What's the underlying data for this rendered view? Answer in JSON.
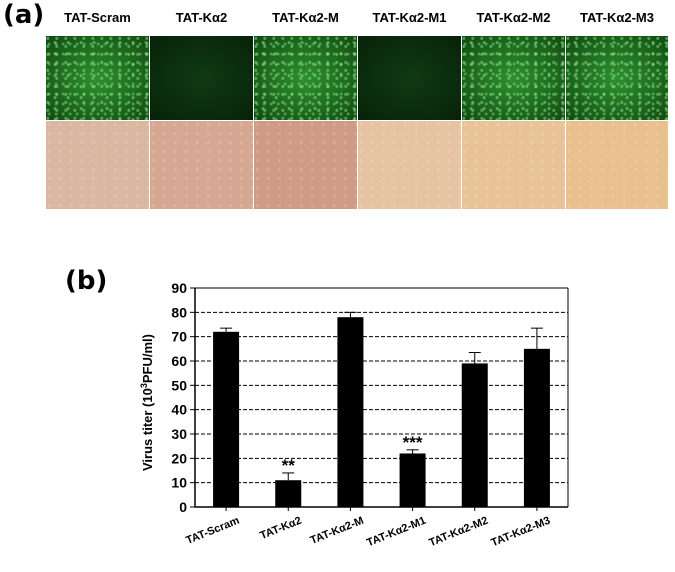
{
  "panel_a": {
    "label": "(a)",
    "columns": [
      {
        "title": "TAT-Scram",
        "fluorescence": "high",
        "bright_tint": "#d9b7a0"
      },
      {
        "title": "TAT-Kα2",
        "fluorescence": "low",
        "bright_tint": "#d6a894"
      },
      {
        "title": "TAT-Kα2-M",
        "fluorescence": "high",
        "bright_tint": "#cf9a86"
      },
      {
        "title": "TAT-Kα2-M1",
        "fluorescence": "low",
        "bright_tint": "#e6c3a2"
      },
      {
        "title": "TAT-Kα2-M2",
        "fluorescence": "high",
        "bright_tint": "#e8c398"
      },
      {
        "title": "TAT-Kα2-M3",
        "fluorescence": "high",
        "bright_tint": "#e9c08e"
      }
    ]
  },
  "panel_b": {
    "label": "(b)"
  },
  "chart_data": {
    "type": "bar",
    "title": "",
    "xlabel": "",
    "ylabel_prefix": "Virus titer (10",
    "ylabel_sup": "3",
    "ylabel_suffix": "PFU/ml)",
    "categories": [
      "TAT-Scram",
      "TAT-Kα2",
      "TAT-Kα2-M",
      "TAT-Kα2-M1",
      "TAT-Kα2-M2",
      "TAT-Kα2-M3"
    ],
    "values": [
      72,
      11,
      78,
      22,
      59,
      65
    ],
    "errors": [
      1.5,
      3,
      2,
      1.5,
      4.5,
      8.5
    ],
    "annotations": [
      "",
      "**",
      "",
      "***",
      "",
      ""
    ],
    "ylim": [
      0,
      90
    ],
    "yticks": [
      0,
      10,
      20,
      30,
      40,
      50,
      60,
      70,
      80,
      90
    ],
    "grid": true,
    "bar_color": "#000000"
  }
}
